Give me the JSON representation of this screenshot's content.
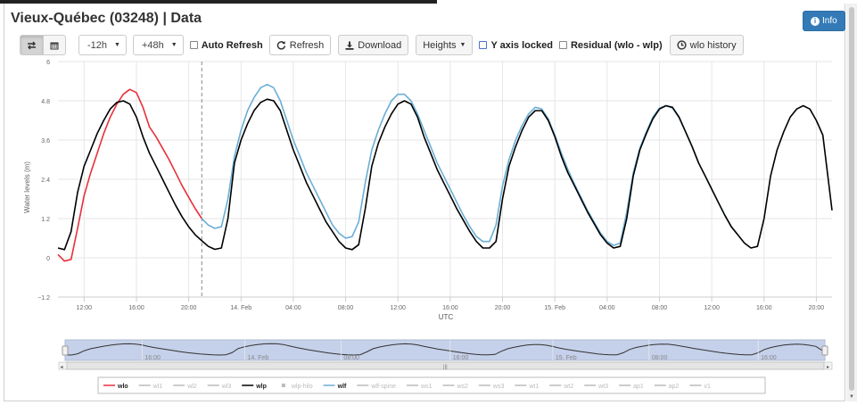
{
  "page": {
    "title": "Vieux-Québec (03248) | Data",
    "info_label": "Info"
  },
  "toolbar": {
    "range_back": "-12h",
    "range_forward": "+48h",
    "auto_refresh_label": "Auto Refresh",
    "refresh_label": "Refresh",
    "download_label": "Download",
    "heights_label": "Heights",
    "y_axis_locked_label": "Y axis locked",
    "residual_label": "Residual (wlo - wlp)",
    "wlo_history_label": "wlo history"
  },
  "colors": {
    "wlo": "#e8303a",
    "wlp": "#000000",
    "wlf": "#6aaed6",
    "grid": "#e6e6e6",
    "navigator_fill": "#c5d0ea",
    "legend_inactive": "#bbbbbb"
  },
  "chart_data": {
    "type": "line",
    "xlabel": "UTC",
    "ylabel": "Water levels (m)",
    "x_unit": "hours since 10:00 (13 Feb)",
    "xlim": [
      0.0,
      59.2
    ],
    "ylim": [
      -1.2,
      6
    ],
    "y_ticks": [
      "6",
      "4.8",
      "3.6",
      "2.4",
      "1.2",
      "0",
      "−1.2"
    ],
    "y_tick_values": [
      6,
      4.8,
      3.6,
      2.4,
      1.2,
      0,
      -1.2
    ],
    "x_ticks": [
      {
        "x": 2,
        "label": "12:00"
      },
      {
        "x": 6,
        "label": "16:00"
      },
      {
        "x": 10,
        "label": "20:00"
      },
      {
        "x": 14,
        "label": "14. Feb"
      },
      {
        "x": 18,
        "label": "04:00"
      },
      {
        "x": 22,
        "label": "08:00"
      },
      {
        "x": 26,
        "label": "12:00"
      },
      {
        "x": 30,
        "label": "16:00"
      },
      {
        "x": 34,
        "label": "20:00"
      },
      {
        "x": 38,
        "label": "15. Feb"
      },
      {
        "x": 42,
        "label": "04:00"
      },
      {
        "x": 46,
        "label": "08:00"
      },
      {
        "x": 50,
        "label": "12:00"
      },
      {
        "x": 54,
        "label": "16:00"
      },
      {
        "x": 58,
        "label": "20:00"
      }
    ],
    "now_line_x": 11.0,
    "series": [
      {
        "name": "wlo",
        "points": [
          [
            0,
            0.1
          ],
          [
            0.5,
            -0.1
          ],
          [
            1,
            -0.05
          ],
          [
            1.5,
            0.9
          ],
          [
            2,
            1.9
          ],
          [
            2.5,
            2.6
          ],
          [
            3,
            3.2
          ],
          [
            3.5,
            3.8
          ],
          [
            4,
            4.3
          ],
          [
            4.5,
            4.7
          ],
          [
            5,
            5.0
          ],
          [
            5.5,
            5.15
          ],
          [
            6,
            5.05
          ],
          [
            6.5,
            4.6
          ],
          [
            7,
            4.0
          ],
          [
            7.5,
            3.7
          ],
          [
            8,
            3.35
          ],
          [
            8.5,
            3.0
          ],
          [
            9,
            2.6
          ],
          [
            9.5,
            2.2
          ],
          [
            10,
            1.85
          ],
          [
            10.5,
            1.5
          ],
          [
            11,
            1.2
          ]
        ]
      },
      {
        "name": "wlp",
        "points": [
          [
            0,
            0.3
          ],
          [
            0.5,
            0.25
          ],
          [
            1,
            0.8
          ],
          [
            1.5,
            2.0
          ],
          [
            2,
            2.8
          ],
          [
            2.5,
            3.3
          ],
          [
            3,
            3.8
          ],
          [
            3.5,
            4.2
          ],
          [
            4,
            4.55
          ],
          [
            4.5,
            4.75
          ],
          [
            5,
            4.8
          ],
          [
            5.5,
            4.7
          ],
          [
            6,
            4.3
          ],
          [
            6.5,
            3.7
          ],
          [
            7,
            3.2
          ],
          [
            7.5,
            2.8
          ],
          [
            8,
            2.4
          ],
          [
            8.5,
            2.0
          ],
          [
            9,
            1.6
          ],
          [
            9.5,
            1.25
          ],
          [
            10,
            0.95
          ],
          [
            10.5,
            0.7
          ],
          [
            11,
            0.52
          ],
          [
            11.5,
            0.35
          ],
          [
            12,
            0.26
          ],
          [
            12.5,
            0.3
          ],
          [
            13,
            1.2
          ],
          [
            13.5,
            2.9
          ],
          [
            14,
            3.6
          ],
          [
            14.5,
            4.1
          ],
          [
            15,
            4.5
          ],
          [
            15.5,
            4.75
          ],
          [
            16,
            4.85
          ],
          [
            16.5,
            4.8
          ],
          [
            17,
            4.5
          ],
          [
            17.5,
            3.9
          ],
          [
            18,
            3.3
          ],
          [
            18.5,
            2.8
          ],
          [
            19,
            2.3
          ],
          [
            19.5,
            1.9
          ],
          [
            20,
            1.5
          ],
          [
            20.5,
            1.1
          ],
          [
            21,
            0.8
          ],
          [
            21.5,
            0.5
          ],
          [
            22,
            0.3
          ],
          [
            22.5,
            0.25
          ],
          [
            23,
            0.4
          ],
          [
            23.5,
            1.5
          ],
          [
            24,
            2.8
          ],
          [
            24.5,
            3.5
          ],
          [
            25,
            4.0
          ],
          [
            25.5,
            4.4
          ],
          [
            26,
            4.7
          ],
          [
            26.5,
            4.8
          ],
          [
            27,
            4.7
          ],
          [
            27.5,
            4.3
          ],
          [
            28,
            3.7
          ],
          [
            28.5,
            3.2
          ],
          [
            29,
            2.7
          ],
          [
            29.5,
            2.3
          ],
          [
            30,
            1.9
          ],
          [
            30.5,
            1.5
          ],
          [
            31,
            1.15
          ],
          [
            31.5,
            0.8
          ],
          [
            32,
            0.5
          ],
          [
            32.5,
            0.3
          ],
          [
            33,
            0.3
          ],
          [
            33.5,
            0.5
          ],
          [
            34,
            1.8
          ],
          [
            34.5,
            2.8
          ],
          [
            35,
            3.4
          ],
          [
            35.5,
            3.9
          ],
          [
            36,
            4.3
          ],
          [
            36.5,
            4.5
          ],
          [
            37,
            4.5
          ],
          [
            37.5,
            4.2
          ],
          [
            38,
            3.7
          ],
          [
            38.5,
            3.1
          ],
          [
            39,
            2.6
          ],
          [
            39.5,
            2.2
          ],
          [
            40,
            1.8
          ],
          [
            40.5,
            1.4
          ],
          [
            41,
            1.05
          ],
          [
            41.5,
            0.7
          ],
          [
            42,
            0.45
          ],
          [
            42.5,
            0.3
          ],
          [
            43,
            0.35
          ],
          [
            43.5,
            1.2
          ],
          [
            44,
            2.5
          ],
          [
            44.5,
            3.3
          ],
          [
            45,
            3.8
          ],
          [
            45.5,
            4.25
          ],
          [
            46,
            4.55
          ],
          [
            46.5,
            4.65
          ],
          [
            47,
            4.6
          ],
          [
            47.5,
            4.3
          ],
          [
            48,
            3.85
          ],
          [
            48.5,
            3.4
          ],
          [
            49,
            2.9
          ],
          [
            49.5,
            2.5
          ],
          [
            50,
            2.1
          ],
          [
            50.5,
            1.7
          ],
          [
            51,
            1.3
          ],
          [
            51.5,
            0.95
          ],
          [
            52,
            0.7
          ]
        ]
      },
      {
        "name": "wlf",
        "points": [
          [
            11,
            1.2
          ],
          [
            11.5,
            1.0
          ],
          [
            12,
            0.9
          ],
          [
            12.5,
            0.95
          ],
          [
            13,
            1.8
          ],
          [
            13.5,
            3.1
          ],
          [
            14,
            3.9
          ],
          [
            14.5,
            4.5
          ],
          [
            15,
            4.9
          ],
          [
            15.5,
            5.2
          ],
          [
            16,
            5.3
          ],
          [
            16.5,
            5.2
          ],
          [
            17,
            4.8
          ],
          [
            17.5,
            4.2
          ],
          [
            18,
            3.6
          ],
          [
            18.5,
            3.1
          ],
          [
            19,
            2.6
          ],
          [
            19.5,
            2.2
          ],
          [
            20,
            1.8
          ],
          [
            20.5,
            1.4
          ],
          [
            21,
            1.0
          ],
          [
            21.5,
            0.75
          ],
          [
            22,
            0.6
          ],
          [
            22.5,
            0.65
          ],
          [
            23,
            1.1
          ],
          [
            23.5,
            2.3
          ],
          [
            24,
            3.3
          ],
          [
            24.5,
            3.9
          ],
          [
            25,
            4.4
          ],
          [
            25.5,
            4.8
          ],
          [
            26,
            5.0
          ],
          [
            26.5,
            5.0
          ],
          [
            27,
            4.8
          ],
          [
            27.5,
            4.4
          ],
          [
            28,
            3.9
          ],
          [
            28.5,
            3.4
          ],
          [
            29,
            2.9
          ],
          [
            29.5,
            2.5
          ],
          [
            30,
            2.1
          ],
          [
            30.5,
            1.7
          ],
          [
            31,
            1.3
          ],
          [
            31.5,
            0.95
          ],
          [
            32,
            0.65
          ],
          [
            32.5,
            0.5
          ],
          [
            33,
            0.5
          ],
          [
            33.5,
            1.0
          ],
          [
            34,
            2.2
          ],
          [
            34.5,
            3.0
          ],
          [
            35,
            3.6
          ],
          [
            35.5,
            4.05
          ],
          [
            36,
            4.4
          ],
          [
            36.5,
            4.6
          ],
          [
            37,
            4.55
          ],
          [
            37.5,
            4.25
          ],
          [
            38,
            3.75
          ],
          [
            38.5,
            3.2
          ],
          [
            39,
            2.7
          ],
          [
            39.5,
            2.25
          ],
          [
            40,
            1.85
          ],
          [
            40.5,
            1.45
          ],
          [
            41,
            1.1
          ],
          [
            41.5,
            0.75
          ],
          [
            42,
            0.5
          ],
          [
            42.5,
            0.38
          ],
          [
            43,
            0.45
          ],
          [
            43.5,
            1.4
          ],
          [
            44,
            2.6
          ],
          [
            44.5,
            3.35
          ],
          [
            45,
            3.85
          ],
          [
            45.5,
            4.3
          ],
          [
            46,
            4.58
          ],
          [
            46.5,
            4.65
          ],
          [
            47,
            4.58
          ],
          [
            47.5,
            4.28
          ],
          [
            48,
            3.85
          ],
          [
            48.5,
            3.4
          ],
          [
            49,
            2.9
          ],
          [
            49.5,
            2.5
          ],
          [
            50,
            2.1
          ],
          [
            50.5,
            1.7
          ],
          [
            51,
            1.3
          ],
          [
            51.5,
            0.95
          ],
          [
            52,
            0.7
          ]
        ]
      },
      {
        "name": "wlp-tail",
        "points": [
          [
            52,
            0.7
          ],
          [
            52.5,
            0.45
          ],
          [
            53,
            0.3
          ],
          [
            53.5,
            0.35
          ],
          [
            54,
            1.2
          ],
          [
            54.5,
            2.5
          ],
          [
            55,
            3.3
          ],
          [
            55.5,
            3.85
          ],
          [
            56,
            4.3
          ],
          [
            56.5,
            4.55
          ],
          [
            57,
            4.65
          ],
          [
            57.5,
            4.55
          ],
          [
            58,
            4.2
          ],
          [
            58.5,
            3.75
          ],
          [
            59.2,
            1.45
          ]
        ]
      }
    ],
    "navigator": {
      "labels": [
        {
          "x": 6,
          "label": "16:00"
        },
        {
          "x": 14,
          "label": "14. Feb"
        },
        {
          "x": 21.5,
          "label": "08:00"
        },
        {
          "x": 30,
          "label": "16:00"
        },
        {
          "x": 38,
          "label": "15. Feb"
        },
        {
          "x": 45.5,
          "label": "08:00"
        },
        {
          "x": 54,
          "label": "16:00"
        }
      ]
    },
    "legend": [
      {
        "name": "wlo",
        "active": true,
        "symbol": "line"
      },
      {
        "name": "wl1",
        "active": false,
        "symbol": "line"
      },
      {
        "name": "wl2",
        "active": false,
        "symbol": "line"
      },
      {
        "name": "wl3",
        "active": false,
        "symbol": "line"
      },
      {
        "name": "wlp",
        "active": true,
        "symbol": "line"
      },
      {
        "name": "wlp-hilo",
        "active": false,
        "symbol": "dot"
      },
      {
        "name": "wlf",
        "active": true,
        "symbol": "line"
      },
      {
        "name": "wlf-spine",
        "active": false,
        "symbol": "line"
      },
      {
        "name": "ws1",
        "active": false,
        "symbol": "line"
      },
      {
        "name": "ws2",
        "active": false,
        "symbol": "line"
      },
      {
        "name": "ws3",
        "active": false,
        "symbol": "line"
      },
      {
        "name": "wt1",
        "active": false,
        "symbol": "line"
      },
      {
        "name": "wt2",
        "active": false,
        "symbol": "line"
      },
      {
        "name": "wt3",
        "active": false,
        "symbol": "line"
      },
      {
        "name": "ap1",
        "active": false,
        "symbol": "line"
      },
      {
        "name": "ap2",
        "active": false,
        "symbol": "line"
      },
      {
        "name": "v1",
        "active": false,
        "symbol": "line"
      }
    ]
  }
}
